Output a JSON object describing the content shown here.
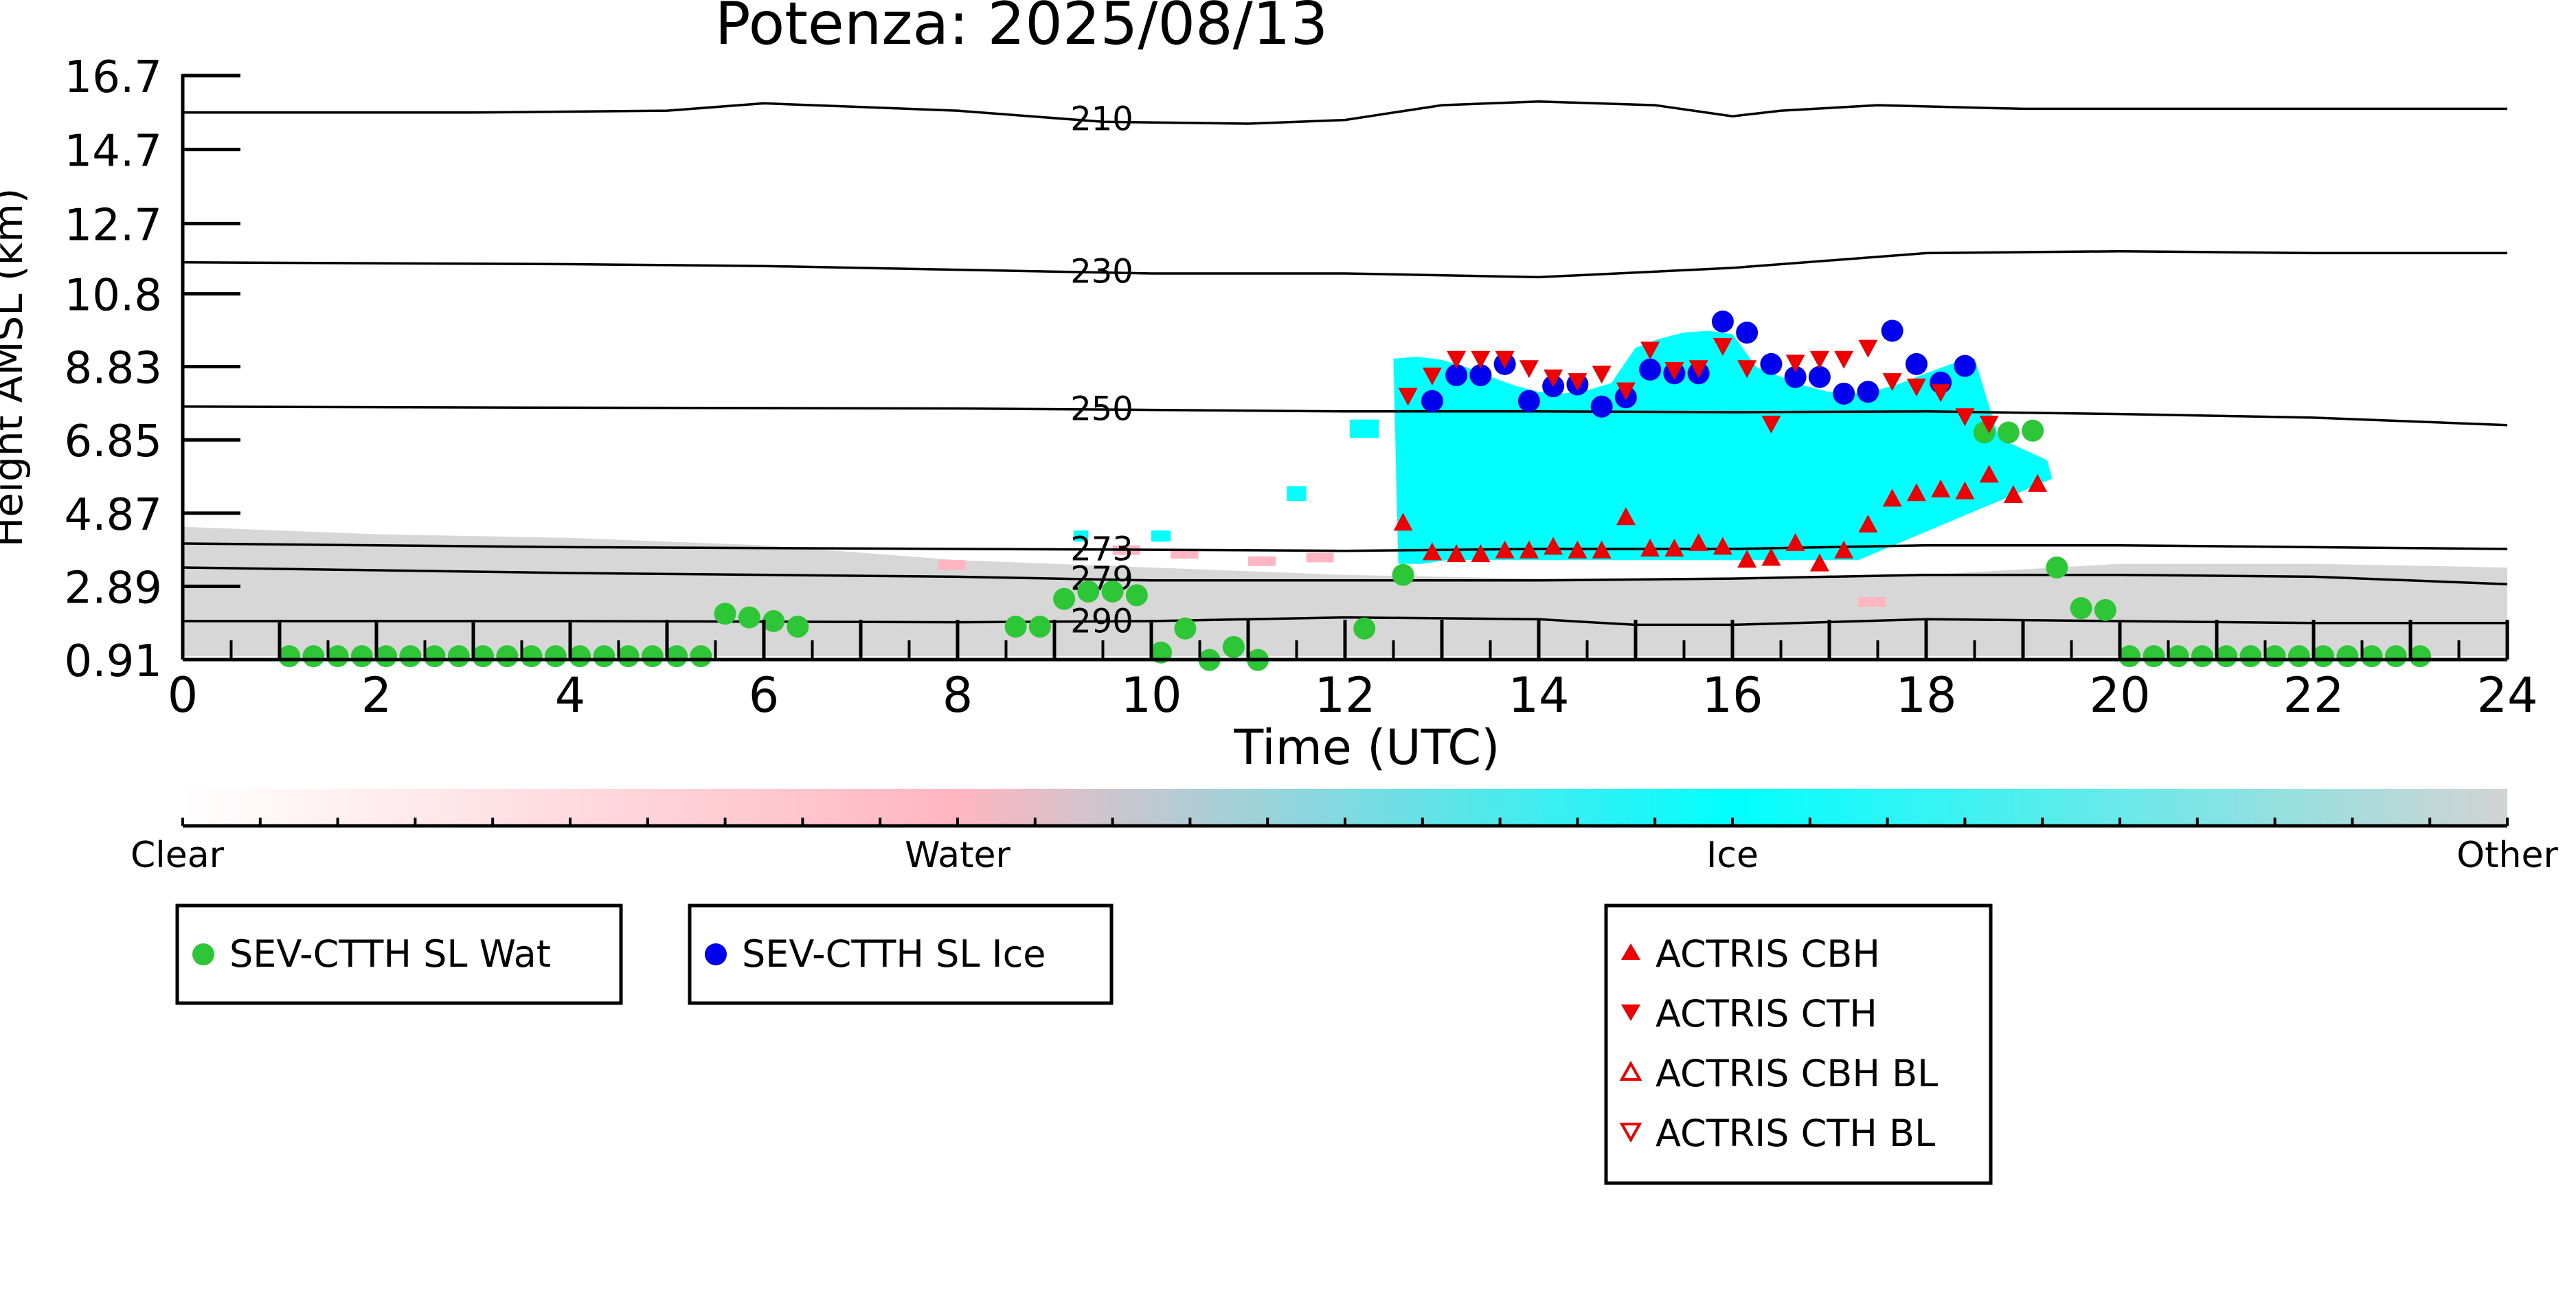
{
  "chart_data": {
    "type": "scatter",
    "title": "Potenza: 2025/08/13",
    "xlabel": "Time (UTC)",
    "ylabel": "Height AMSL (km)",
    "xlim": [
      0,
      24
    ],
    "ylim": [
      0.91,
      16.7
    ],
    "x_ticks": [
      0,
      2,
      4,
      6,
      8,
      10,
      12,
      14,
      16,
      18,
      20,
      22,
      24
    ],
    "y_ticks": [
      0.91,
      2.89,
      4.87,
      6.85,
      8.83,
      10.8,
      12.7,
      14.7,
      16.7
    ],
    "y_tick_labels": [
      "0.91",
      "2.89",
      "4.87",
      "6.85",
      "8.83",
      "10.8",
      "12.7",
      "14.7",
      "16.7"
    ],
    "grid": false,
    "colors": {
      "clear": "#ffffff",
      "water": "#ffb6c1",
      "ice": "#00ffff",
      "other": "#d3d3d3",
      "sev_wat": "#2dc637",
      "sev_ice": "#0000ee",
      "actris": "#ee0000",
      "contour": "#000000"
    },
    "colorbar": {
      "labels": [
        "Clear",
        "Water",
        "Ice",
        "Other"
      ]
    },
    "temperature_contours": [
      {
        "label": "210",
        "points": [
          [
            0,
            15.7
          ],
          [
            3,
            15.7
          ],
          [
            5,
            15.75
          ],
          [
            6,
            15.95
          ],
          [
            8,
            15.75
          ],
          [
            9.5,
            15.45
          ],
          [
            11,
            15.4
          ],
          [
            12,
            15.5
          ],
          [
            13,
            15.9
          ],
          [
            14,
            16.0
          ],
          [
            15.2,
            15.9
          ],
          [
            16,
            15.6
          ],
          [
            16.5,
            15.75
          ],
          [
            17.5,
            15.9
          ],
          [
            19,
            15.8
          ],
          [
            21,
            15.8
          ],
          [
            24,
            15.8
          ]
        ]
      },
      {
        "label": "230",
        "points": [
          [
            0,
            11.65
          ],
          [
            4,
            11.6
          ],
          [
            6,
            11.55
          ],
          [
            8,
            11.45
          ],
          [
            10,
            11.35
          ],
          [
            12,
            11.35
          ],
          [
            14,
            11.25
          ],
          [
            16,
            11.5
          ],
          [
            18,
            11.9
          ],
          [
            20,
            11.95
          ],
          [
            22,
            11.9
          ],
          [
            24,
            11.9
          ]
        ]
      },
      {
        "label": "250",
        "points": [
          [
            0,
            7.75
          ],
          [
            4,
            7.72
          ],
          [
            8,
            7.7
          ],
          [
            10,
            7.66
          ],
          [
            12,
            7.62
          ],
          [
            14,
            7.62
          ],
          [
            16,
            7.6
          ],
          [
            18,
            7.62
          ],
          [
            20,
            7.55
          ],
          [
            22,
            7.45
          ],
          [
            24,
            7.25
          ]
        ]
      },
      {
        "label": "273",
        "points": [
          [
            0,
            4.05
          ],
          [
            4,
            3.95
          ],
          [
            8,
            3.9
          ],
          [
            10,
            3.88
          ],
          [
            12,
            3.85
          ],
          [
            14,
            3.9
          ],
          [
            16,
            3.9
          ],
          [
            18,
            4.0
          ],
          [
            20,
            4.0
          ],
          [
            22,
            3.95
          ],
          [
            24,
            3.9
          ]
        ]
      },
      {
        "label": "279",
        "points": [
          [
            0,
            3.4
          ],
          [
            4,
            3.25
          ],
          [
            8,
            3.15
          ],
          [
            10,
            3.05
          ],
          [
            12,
            3.05
          ],
          [
            14,
            3.05
          ],
          [
            16,
            3.1
          ],
          [
            18,
            3.2
          ],
          [
            20,
            3.2
          ],
          [
            22,
            3.15
          ],
          [
            24,
            2.95
          ]
        ]
      },
      {
        "label": "290",
        "points": [
          [
            0,
            1.95
          ],
          [
            4,
            1.95
          ],
          [
            8,
            1.92
          ],
          [
            10,
            1.95
          ],
          [
            12,
            2.05
          ],
          [
            14,
            2.0
          ],
          [
            15,
            1.85
          ],
          [
            16,
            1.85
          ],
          [
            18,
            2.0
          ],
          [
            20,
            1.95
          ],
          [
            22,
            1.9
          ],
          [
            24,
            1.9
          ]
        ]
      }
    ],
    "series": [
      {
        "name": "SEV-CTTH SL Wat",
        "marker": "circle",
        "points": [
          [
            1.1,
            1.0
          ],
          [
            1.35,
            1.0
          ],
          [
            1.6,
            1.0
          ],
          [
            1.85,
            1.0
          ],
          [
            2.1,
            1.0
          ],
          [
            2.35,
            1.0
          ],
          [
            2.6,
            1.0
          ],
          [
            2.85,
            1.0
          ],
          [
            3.1,
            1.0
          ],
          [
            3.35,
            1.0
          ],
          [
            3.6,
            1.0
          ],
          [
            3.85,
            1.0
          ],
          [
            4.1,
            1.0
          ],
          [
            4.35,
            1.0
          ],
          [
            4.6,
            1.0
          ],
          [
            4.85,
            1.0
          ],
          [
            5.1,
            1.0
          ],
          [
            5.35,
            1.0
          ],
          [
            5.6,
            2.15
          ],
          [
            5.85,
            2.05
          ],
          [
            6.1,
            1.95
          ],
          [
            6.35,
            1.8
          ],
          [
            8.6,
            1.8
          ],
          [
            8.85,
            1.8
          ],
          [
            9.1,
            2.55
          ],
          [
            9.35,
            2.75
          ],
          [
            9.6,
            2.75
          ],
          [
            9.85,
            2.65
          ],
          [
            10.1,
            1.1
          ],
          [
            10.35,
            1.75
          ],
          [
            10.6,
            0.9
          ],
          [
            10.85,
            1.25
          ],
          [
            11.1,
            0.9
          ],
          [
            12.2,
            1.75
          ],
          [
            12.6,
            3.2
          ],
          [
            18.6,
            7.05
          ],
          [
            18.85,
            7.05
          ],
          [
            19.1,
            7.1
          ],
          [
            19.35,
            3.4
          ],
          [
            19.6,
            2.3
          ],
          [
            19.85,
            2.25
          ],
          [
            20.1,
            1.0
          ],
          [
            20.35,
            1.0
          ],
          [
            20.6,
            1.0
          ],
          [
            20.85,
            1.0
          ],
          [
            21.1,
            1.0
          ],
          [
            21.35,
            1.0
          ],
          [
            21.6,
            1.0
          ],
          [
            21.85,
            1.0
          ],
          [
            22.1,
            1.0
          ],
          [
            22.35,
            1.0
          ],
          [
            22.6,
            1.0
          ],
          [
            22.85,
            1.0
          ],
          [
            23.1,
            1.0
          ]
        ]
      },
      {
        "name": "SEV-CTTH SL Ice",
        "marker": "circle",
        "points": [
          [
            12.9,
            7.9
          ],
          [
            13.15,
            8.6
          ],
          [
            13.4,
            8.6
          ],
          [
            13.65,
            8.9
          ],
          [
            13.9,
            7.9
          ],
          [
            14.15,
            8.3
          ],
          [
            14.4,
            8.35
          ],
          [
            14.65,
            7.75
          ],
          [
            14.9,
            8.0
          ],
          [
            15.15,
            8.75
          ],
          [
            15.4,
            8.65
          ],
          [
            15.65,
            8.65
          ],
          [
            15.9,
            10.05
          ],
          [
            16.15,
            9.75
          ],
          [
            16.4,
            8.9
          ],
          [
            16.65,
            8.55
          ],
          [
            16.9,
            8.55
          ],
          [
            17.15,
            8.1
          ],
          [
            17.4,
            8.15
          ],
          [
            17.65,
            9.8
          ],
          [
            17.9,
            8.9
          ],
          [
            18.15,
            8.4
          ],
          [
            18.4,
            8.85
          ]
        ]
      },
      {
        "name": "ACTRIS CBH",
        "marker": "triangle-up",
        "points": [
          [
            12.6,
            4.6
          ],
          [
            12.9,
            3.8
          ],
          [
            13.15,
            3.75
          ],
          [
            13.4,
            3.75
          ],
          [
            13.65,
            3.85
          ],
          [
            13.9,
            3.85
          ],
          [
            14.15,
            3.95
          ],
          [
            14.4,
            3.85
          ],
          [
            14.65,
            3.85
          ],
          [
            14.9,
            4.75
          ],
          [
            15.15,
            3.9
          ],
          [
            15.4,
            3.9
          ],
          [
            15.65,
            4.05
          ],
          [
            15.9,
            3.95
          ],
          [
            16.15,
            3.6
          ],
          [
            16.4,
            3.65
          ],
          [
            16.65,
            4.05
          ],
          [
            16.9,
            3.5
          ],
          [
            17.15,
            3.85
          ],
          [
            17.4,
            4.55
          ],
          [
            17.65,
            5.25
          ],
          [
            17.9,
            5.4
          ],
          [
            18.15,
            5.5
          ],
          [
            18.4,
            5.45
          ],
          [
            18.65,
            5.9
          ],
          [
            18.9,
            5.35
          ],
          [
            19.15,
            5.65
          ]
        ]
      },
      {
        "name": "ACTRIS CTH",
        "marker": "triangle-down",
        "points": [
          [
            12.65,
            8.05
          ],
          [
            12.9,
            8.6
          ],
          [
            13.15,
            9.05
          ],
          [
            13.4,
            9.05
          ],
          [
            13.65,
            9.05
          ],
          [
            13.9,
            8.8
          ],
          [
            14.15,
            8.55
          ],
          [
            14.4,
            8.45
          ],
          [
            14.65,
            8.65
          ],
          [
            14.9,
            8.2
          ],
          [
            15.15,
            9.3
          ],
          [
            15.4,
            8.75
          ],
          [
            15.65,
            8.8
          ],
          [
            15.9,
            9.4
          ],
          [
            16.15,
            8.8
          ],
          [
            16.4,
            7.3
          ],
          [
            16.65,
            8.95
          ],
          [
            16.9,
            9.05
          ],
          [
            17.15,
            9.05
          ],
          [
            17.4,
            9.35
          ],
          [
            17.65,
            8.45
          ],
          [
            17.9,
            8.3
          ],
          [
            18.15,
            8.15
          ],
          [
            18.4,
            7.5
          ],
          [
            18.65,
            7.3
          ]
        ]
      },
      {
        "name": "ACTRIS CBH BL",
        "marker": "triangle-up-open",
        "points": []
      },
      {
        "name": "ACTRIS CTH BL",
        "marker": "triangle-down-open",
        "points": []
      }
    ],
    "legends": [
      {
        "entries": [
          "SEV-CTTH SL Wat"
        ]
      },
      {
        "entries": [
          "SEV-CTTH SL Ice"
        ]
      },
      {
        "entries": [
          "ACTRIS CBH",
          "ACTRIS CTH",
          "ACTRIS CBH BL",
          "ACTRIS CTH BL"
        ]
      }
    ]
  }
}
